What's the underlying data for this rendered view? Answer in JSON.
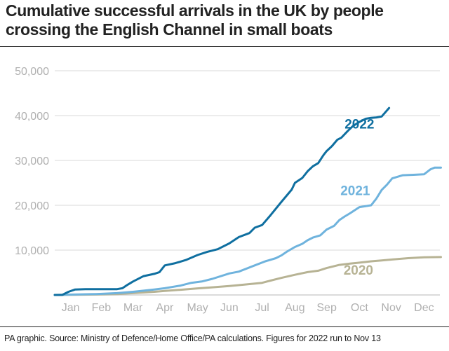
{
  "title": "Cumulative successful arrivals in the UK by people crossing the English Channel in small boats",
  "footnote": "PA graphic. Source: Ministry of Defence/Home Office/PA calculations. Figures for 2022 run to Nov 13",
  "chart_data": {
    "type": "line",
    "title": "Cumulative successful arrivals in the UK by people crossing the English Channel in small boats",
    "xlabel": "",
    "ylabel": "",
    "x_unit": "day of year",
    "xlim": [
      1,
      365
    ],
    "ylim": [
      0,
      50000
    ],
    "y_ticks": [
      {
        "value": 10000,
        "label": "10,000"
      },
      {
        "value": 20000,
        "label": "20,000"
      },
      {
        "value": 30000,
        "label": "30,000"
      },
      {
        "value": 40000,
        "label": "40,000"
      },
      {
        "value": 50000,
        "label": "50,000"
      }
    ],
    "x_ticks": [
      {
        "value": 16,
        "label": "Jan"
      },
      {
        "value": 45,
        "label": "Feb"
      },
      {
        "value": 75,
        "label": "Mar"
      },
      {
        "value": 105,
        "label": "Apr"
      },
      {
        "value": 136,
        "label": "May"
      },
      {
        "value": 166,
        "label": "Jun"
      },
      {
        "value": 197,
        "label": "Jul"
      },
      {
        "value": 228,
        "label": "Aug"
      },
      {
        "value": 258,
        "label": "Sep"
      },
      {
        "value": 289,
        "label": "Oct"
      },
      {
        "value": 319,
        "label": "Nov"
      },
      {
        "value": 350,
        "label": "Dec"
      }
    ],
    "grid": "horizontal",
    "series": [
      {
        "name": "2020",
        "color": "#b7b394",
        "label_at": [
          288,
          4500
        ],
        "x": [
          1,
          20,
          40,
          60,
          75,
          95,
          105,
          120,
          135,
          150,
          166,
          180,
          197,
          205,
          215,
          228,
          240,
          250,
          258,
          270,
          280,
          289,
          300,
          310,
          320,
          335,
          350,
          366
        ],
        "y": [
          0,
          50,
          100,
          200,
          400,
          700,
          900,
          1150,
          1450,
          1700,
          2000,
          2300,
          2700,
          3200,
          3800,
          4500,
          5100,
          5400,
          6000,
          6700,
          7000,
          7200,
          7500,
          7700,
          7900,
          8200,
          8400,
          8450
        ]
      },
      {
        "name": "2021",
        "color": "#6fb3dd",
        "label_at": [
          285,
          22300
        ],
        "x": [
          1,
          20,
          40,
          60,
          75,
          95,
          105,
          120,
          130,
          140,
          150,
          166,
          175,
          190,
          200,
          210,
          215,
          220,
          228,
          235,
          240,
          245,
          252,
          258,
          265,
          270,
          275,
          280,
          289,
          300,
          305,
          310,
          315,
          320,
          330,
          340,
          350,
          356,
          360,
          366
        ],
        "y": [
          0,
          100,
          200,
          400,
          700,
          1200,
          1500,
          2100,
          2700,
          3000,
          3600,
          4800,
          5200,
          6600,
          7500,
          8200,
          8800,
          9600,
          10700,
          11400,
          12200,
          12800,
          13300,
          14600,
          15400,
          16700,
          17500,
          18200,
          19600,
          20000,
          21500,
          23400,
          24600,
          26000,
          26700,
          26800,
          26900,
          28000,
          28400,
          28400
        ]
      },
      {
        "name": "2022",
        "color": "#0f6fa0",
        "label_at": [
          289,
          37100
        ],
        "x": [
          1,
          8,
          14,
          20,
          30,
          45,
          60,
          65,
          70,
          75,
          85,
          95,
          100,
          105,
          115,
          125,
          136,
          145,
          155,
          166,
          175,
          185,
          190,
          197,
          205,
          215,
          225,
          228,
          235,
          240,
          245,
          250,
          255,
          258,
          263,
          268,
          272,
          278,
          283,
          289,
          295,
          300,
          305,
          310,
          317
        ],
        "y": [
          0,
          0,
          700,
          1200,
          1300,
          1300,
          1300,
          1500,
          2300,
          3000,
          4200,
          4700,
          5100,
          6600,
          7100,
          7800,
          8900,
          9600,
          10200,
          11500,
          12900,
          13800,
          15000,
          15600,
          17800,
          20700,
          23500,
          25000,
          26100,
          27600,
          28700,
          29400,
          31200,
          32100,
          33200,
          34600,
          35100,
          36600,
          37700,
          38600,
          39300,
          39500,
          39600,
          39800,
          41700
        ]
      }
    ]
  }
}
